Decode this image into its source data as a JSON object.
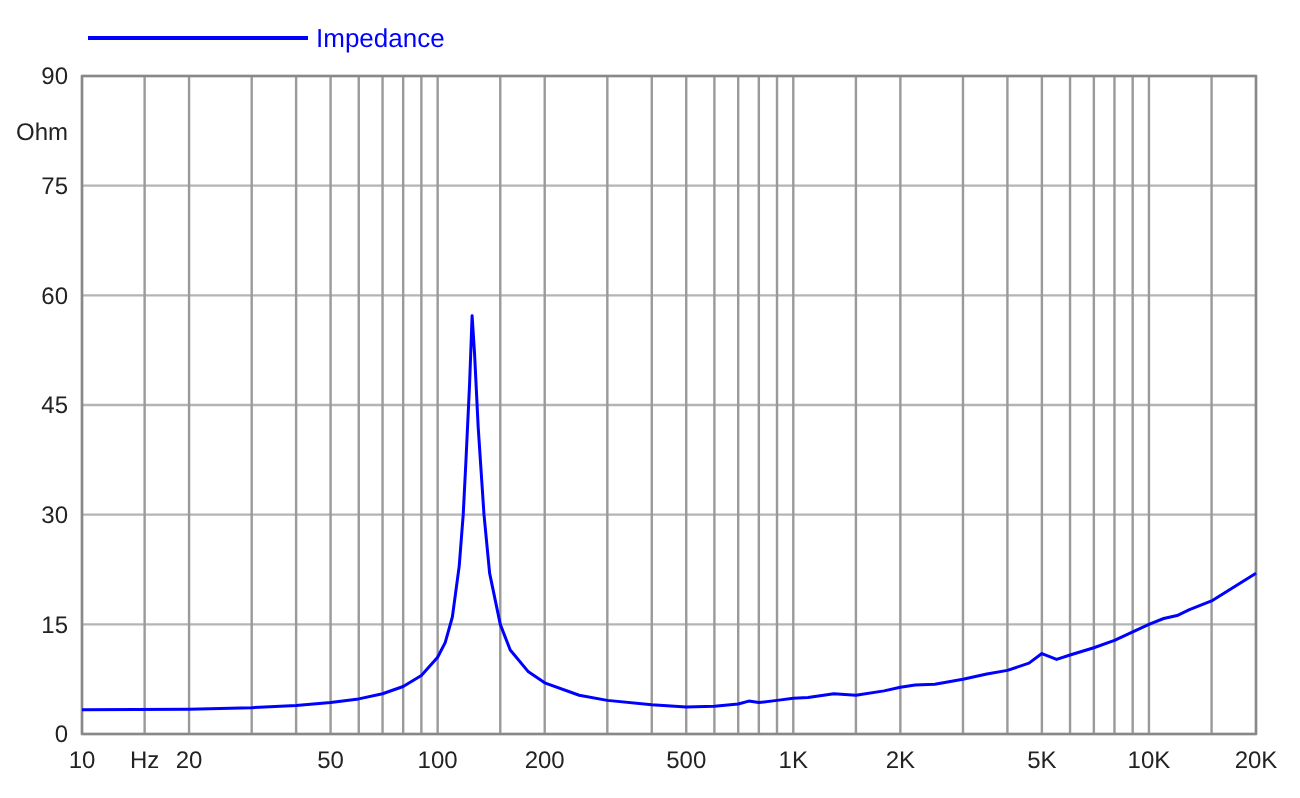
{
  "chart_data": {
    "type": "line",
    "ylabel": "Ohm",
    "log": "x",
    "grid": true,
    "legend": "top left",
    "marker": "none",
    "line_style": "solid",
    "xlim": [
      10,
      20000
    ],
    "ylim": [
      0,
      90
    ],
    "yticks": [
      0,
      15,
      30,
      45,
      60,
      75,
      90
    ],
    "xticks": [
      10,
      {
        "value": 15,
        "label": "Hz"
      },
      20,
      {
        "value": 30,
        "label": null
      },
      {
        "value": 40,
        "label": null
      },
      50,
      {
        "value": 60,
        "label": null
      },
      {
        "value": 70,
        "label": null
      },
      {
        "value": 80,
        "label": null
      },
      {
        "value": 90,
        "label": null
      },
      100,
      {
        "value": 150,
        "label": null
      },
      200,
      {
        "value": 300,
        "label": null
      },
      {
        "value": 400,
        "label": null
      },
      500,
      {
        "value": 600,
        "label": null
      },
      {
        "value": 700,
        "label": null
      },
      {
        "value": 800,
        "label": null
      },
      {
        "value": 900,
        "label": null
      },
      {
        "value": 1000,
        "label": "1K"
      },
      {
        "value": 1500,
        "label": null
      },
      {
        "value": 2000,
        "label": "2K"
      },
      {
        "value": 3000,
        "label": null
      },
      {
        "value": 4000,
        "label": null
      },
      {
        "value": 5000,
        "label": "5K"
      },
      {
        "value": 6000,
        "label": null
      },
      {
        "value": 7000,
        "label": null
      },
      {
        "value": 8000,
        "label": null
      },
      {
        "value": 9000,
        "label": null
      },
      {
        "value": 10000,
        "label": "10K"
      },
      {
        "value": 15000,
        "label": null
      },
      {
        "value": 20000,
        "label": "20K"
      }
    ],
    "x": [
      10,
      20,
      30,
      40,
      50,
      60,
      70,
      80,
      90,
      100,
      105,
      110,
      115,
      118,
      120,
      123,
      125,
      127,
      130,
      135,
      140,
      150,
      160,
      180,
      200,
      250,
      300,
      400,
      500,
      600,
      700,
      750,
      800,
      900,
      1000,
      1100,
      1300,
      1500,
      1800,
      2000,
      2200,
      2500,
      3000,
      3500,
      4000,
      4600,
      5000,
      5500,
      6000,
      7000,
      8000,
      10000,
      11000,
      12000,
      13000,
      15000,
      20000
    ],
    "series": [
      {
        "name": "Impedance",
        "color": "#0000ff",
        "values": [
          3.3,
          3.4,
          3.6,
          3.9,
          4.3,
          4.8,
          5.5,
          6.5,
          8.0,
          10.5,
          12.5,
          16,
          23,
          30,
          37,
          48,
          57.2,
          52,
          42,
          30,
          22,
          15,
          11.5,
          8.5,
          7,
          5.3,
          4.6,
          4.0,
          3.7,
          3.8,
          4.1,
          4.5,
          4.3,
          4.6,
          4.9,
          5.0,
          5.5,
          5.3,
          5.9,
          6.4,
          6.7,
          6.8,
          7.5,
          8.2,
          8.7,
          9.7,
          11.0,
          10.2,
          10.8,
          11.8,
          12.8,
          15.0,
          15.8,
          16.2,
          17.0,
          18.2,
          22.0
        ]
      }
    ]
  }
}
